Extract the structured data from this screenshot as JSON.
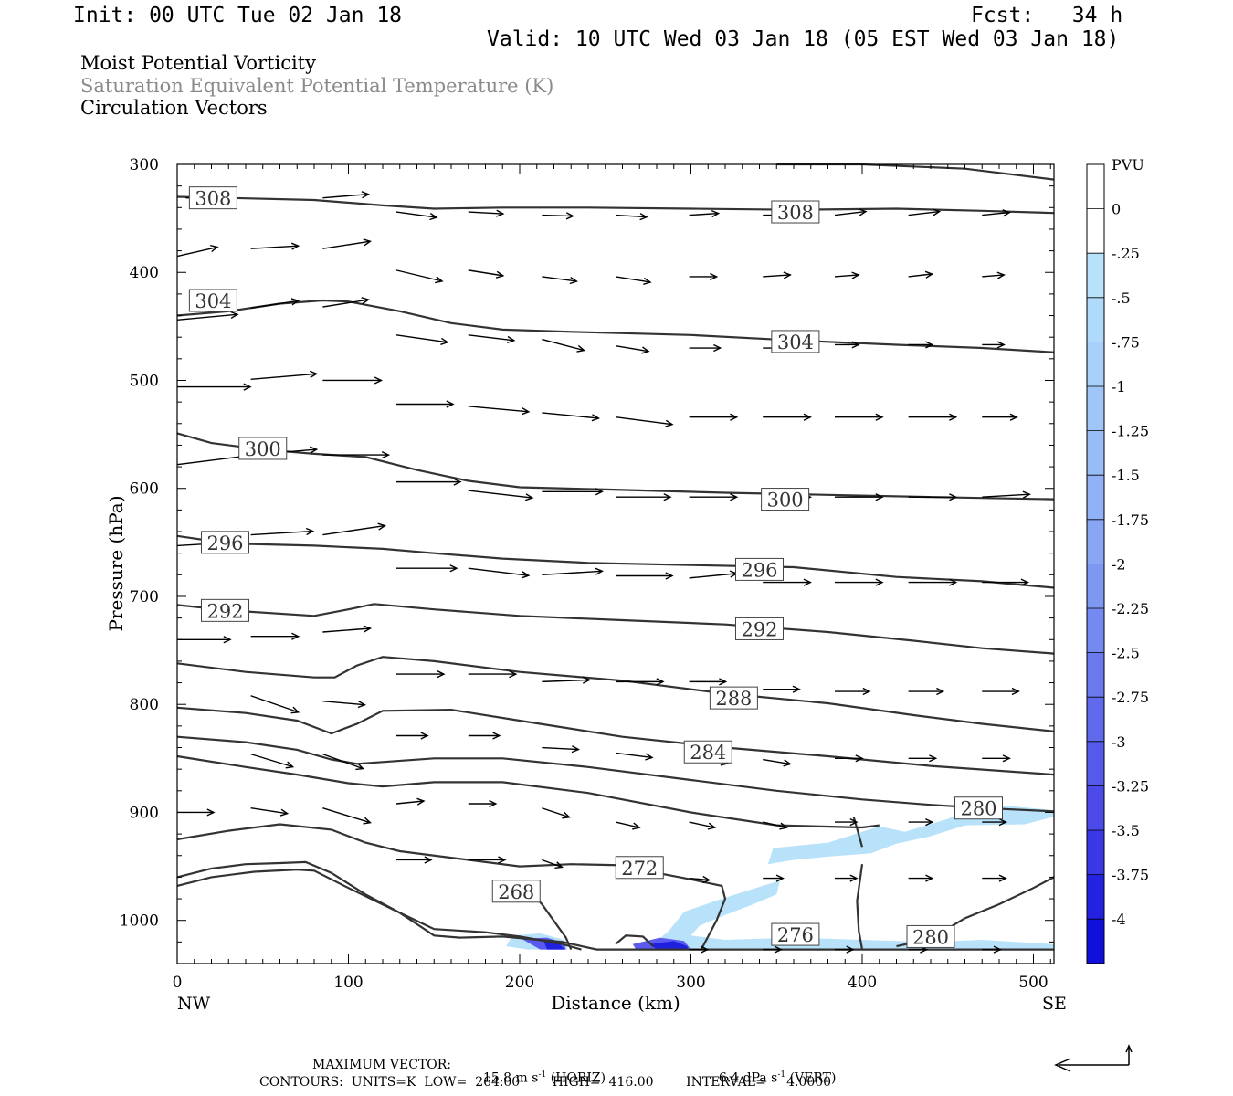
{
  "header": {
    "init": "Init: 00 UTC Tue 02 Jan 18",
    "fcst": "Fcst:   34 h",
    "valid": "Valid: 10 UTC Wed 03 Jan 18 (05 EST Wed 03 Jan 18)"
  },
  "titles": {
    "line1": "Moist Potential Vorticity",
    "line2": "Saturation Equivalent Potential Temperature (K)",
    "line3": "Circulation Vectors"
  },
  "footer": {
    "max_vector_label": "MAXIMUM VECTOR:",
    "horiz_value": "15.8 m s",
    "horiz_unit": "(HORIZ)",
    "vert_value": "6.4 dPa s",
    "vert_unit": "(VERT)",
    "exponent": "-1",
    "contours": "CONTOURS:  UNITS=K  LOW=  264.00        HIGH=  416.00        INTERVAL=     4.0000"
  },
  "colors": {
    "contour": "#333333",
    "pv_light": "#b8e2fa",
    "pv_dark": "#2020e0",
    "frame": "#000000"
  },
  "chart_data": {
    "type": "cross-section",
    "xlabel": "Distance (km)",
    "ylabel": "Pressure (hPa)",
    "xlim": [
      0,
      512
    ],
    "ylim": [
      300,
      1040
    ],
    "y_scale": "pressure (inverted)",
    "x_ticks": [
      0,
      100,
      200,
      300,
      400,
      500
    ],
    "y_ticks": [
      300,
      400,
      500,
      600,
      700,
      800,
      900,
      1000
    ],
    "x_endpoint_labels": {
      "left": "NW",
      "right": "SE"
    },
    "colorbar": {
      "title": "PVU",
      "labels": [
        "0",
        "-.25",
        "-.5",
        "-.75",
        "-1",
        "-1.25",
        "-1.5",
        "-1.75",
        "-2",
        "-2.25",
        "-2.5",
        "-2.75",
        "-3",
        "-3.25",
        "-3.5",
        "-3.75",
        "-4"
      ]
    },
    "contour_labels": [
      {
        "text": "308",
        "x": 21,
        "p": 331
      },
      {
        "text": "308",
        "x": 361,
        "p": 344
      },
      {
        "text": "304",
        "x": 21,
        "p": 426
      },
      {
        "text": "304",
        "x": 361,
        "p": 464
      },
      {
        "text": "300",
        "x": 50,
        "p": 563
      },
      {
        "text": "300",
        "x": 355,
        "p": 610
      },
      {
        "text": "296",
        "x": 28,
        "p": 650
      },
      {
        "text": "296",
        "x": 340,
        "p": 675
      },
      {
        "text": "292",
        "x": 28,
        "p": 713
      },
      {
        "text": "292",
        "x": 340,
        "p": 730
      },
      {
        "text": "288",
        "x": 325,
        "p": 794
      },
      {
        "text": "284",
        "x": 310,
        "p": 844
      },
      {
        "text": "280",
        "x": 468,
        "p": 896
      },
      {
        "text": "272",
        "x": 270,
        "p": 951
      },
      {
        "text": "268",
        "x": 198,
        "p": 973
      },
      {
        "text": "276",
        "x": 361,
        "p": 1013
      },
      {
        "text": "280",
        "x": 440,
        "p": 1015
      }
    ]
  }
}
